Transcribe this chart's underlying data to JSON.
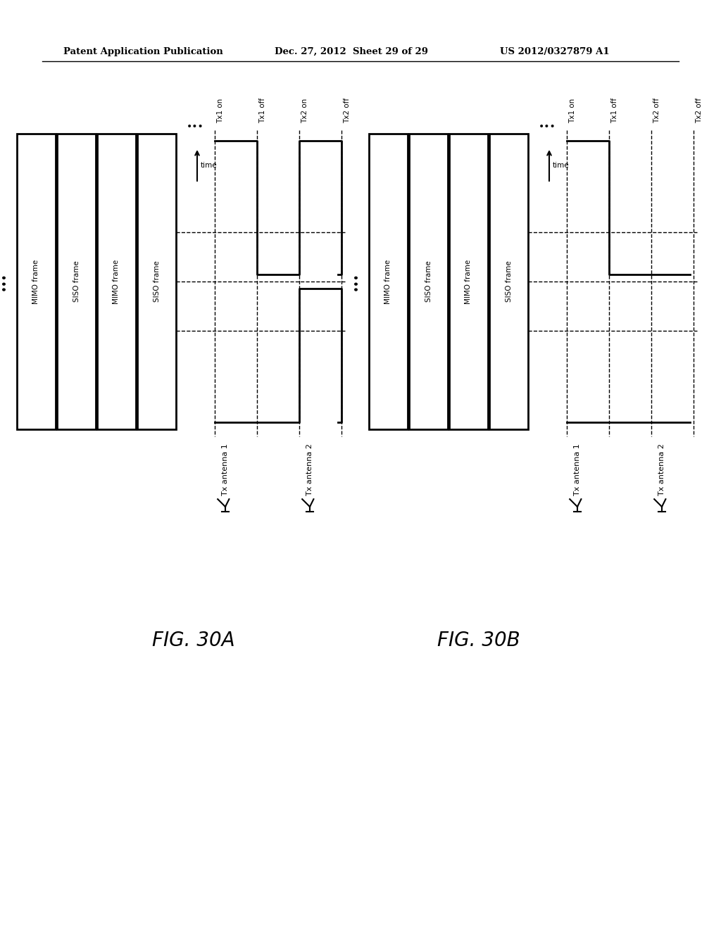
{
  "header_left": "Patent Application Publication",
  "header_mid": "Dec. 27, 2012  Sheet 29 of 29",
  "header_right": "US 2012/0327879 A1",
  "fig_a_label": "FIG. 30A",
  "fig_b_label": "FIG. 30B",
  "bg_color": "#ffffff",
  "lw_thick": 2.0,
  "lw_dashed": 1.0,
  "frames_A": [
    "MIMO frame",
    "SISO frame",
    "MIMO frame",
    "SISO frame"
  ],
  "frames_B": [
    "MIMO frame",
    "SISO frame",
    "MIMO frame",
    "SISO frame"
  ],
  "marker_labels_A": [
    "Tx1 on",
    "Tx1 off",
    "Tx2 on",
    "Tx2 off"
  ],
  "marker_labels_B": [
    "Tx1 on",
    "Tx1 off",
    "Tx2 off",
    "Tx2 off"
  ]
}
